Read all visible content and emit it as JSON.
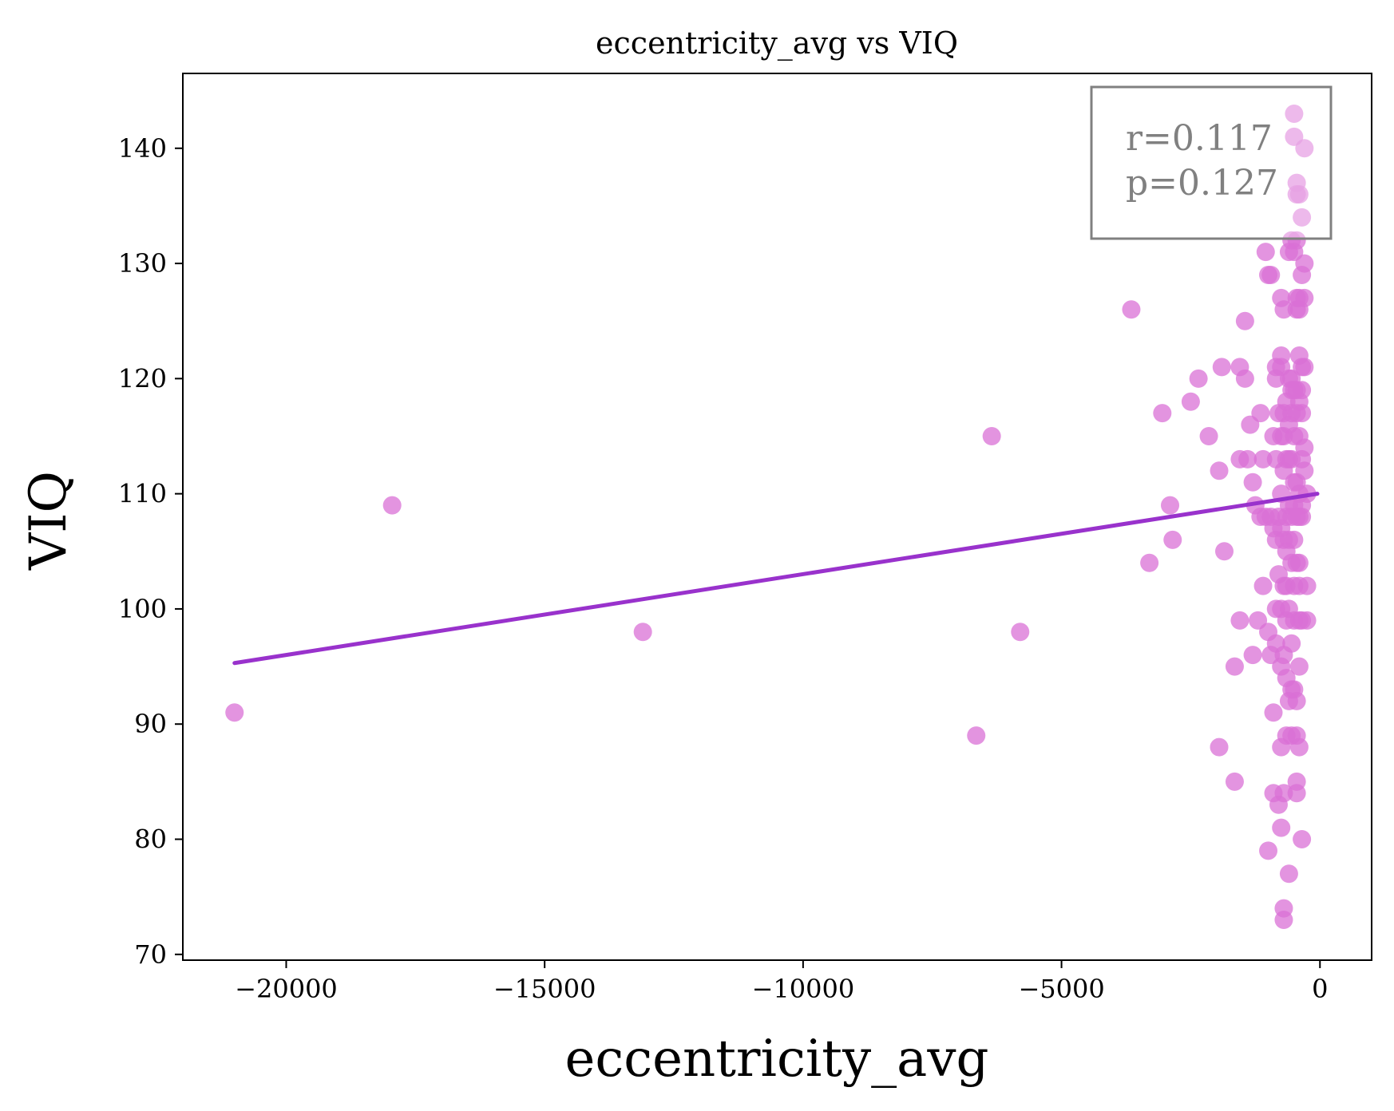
{
  "chart_data": {
    "type": "scatter",
    "title": "eccentricity_avg vs VIQ",
    "xlabel": "eccentricity_avg",
    "ylabel": "VIQ",
    "xlim": [
      -22000,
      1000
    ],
    "ylim": [
      69.5,
      146.5
    ],
    "xticks": [
      -20000,
      -15000,
      -10000,
      -5000,
      0
    ],
    "xtick_labels": [
      "−20000",
      "−15000",
      "−10000",
      "−5000",
      "0"
    ],
    "yticks": [
      70,
      80,
      90,
      100,
      110,
      120,
      130,
      140
    ],
    "ytick_labels": [
      "70",
      "80",
      "90",
      "100",
      "110",
      "120",
      "130",
      "140"
    ],
    "grid": false,
    "point_color": "#DA70D6",
    "line_color": "#9932CC",
    "annotation": {
      "lines": [
        "r=0.117",
        "p=0.127"
      ],
      "color": "#808080",
      "placement": "top-right"
    },
    "fit_line": {
      "x": [
        -21000,
        -50
      ],
      "y": [
        95.3,
        110
      ]
    },
    "series": [
      {
        "points": [
          [
            -21000,
            91
          ],
          [
            -17950,
            109
          ],
          [
            -13100,
            98
          ],
          [
            -6650,
            89
          ],
          [
            -6350,
            115
          ],
          [
            -5800,
            98
          ],
          [
            -3650,
            126
          ],
          [
            -3300,
            104
          ],
          [
            -3050,
            117
          ],
          [
            -2900,
            109
          ],
          [
            -2850,
            106
          ],
          [
            -2500,
            118
          ],
          [
            -2350,
            120
          ],
          [
            -2150,
            115
          ],
          [
            -1950,
            112
          ],
          [
            -1900,
            121
          ],
          [
            -1850,
            105
          ],
          [
            -1950,
            88
          ],
          [
            -1650,
            95
          ],
          [
            -1650,
            85
          ],
          [
            -1550,
            121
          ],
          [
            -1550,
            99
          ],
          [
            -1550,
            113
          ],
          [
            -1450,
            125
          ],
          [
            -1450,
            120
          ],
          [
            -1400,
            113
          ],
          [
            -1350,
            116
          ],
          [
            -1300,
            111
          ],
          [
            -1300,
            96
          ],
          [
            -1250,
            109
          ],
          [
            -1200,
            99
          ],
          [
            -1150,
            117
          ],
          [
            -1150,
            108
          ],
          [
            -1100,
            102
          ],
          [
            -1100,
            113
          ],
          [
            -1050,
            131
          ],
          [
            -1050,
            108
          ],
          [
            -1000,
            129
          ],
          [
            -1000,
            98
          ],
          [
            -1000,
            79
          ],
          [
            -950,
            108
          ],
          [
            -950,
            96
          ],
          [
            -950,
            129
          ],
          [
            -900,
            91
          ],
          [
            -900,
            84
          ],
          [
            -900,
            107
          ],
          [
            -900,
            115
          ],
          [
            -850,
            121
          ],
          [
            -850,
            120
          ],
          [
            -850,
            113
          ],
          [
            -850,
            106
          ],
          [
            -850,
            100
          ],
          [
            -850,
            97
          ],
          [
            -800,
            117
          ],
          [
            -800,
            108
          ],
          [
            -800,
            103
          ],
          [
            -800,
            83
          ],
          [
            -750,
            127
          ],
          [
            -750,
            122
          ],
          [
            -750,
            121
          ],
          [
            -750,
            115
          ],
          [
            -750,
            110
          ],
          [
            -750,
            107
          ],
          [
            -750,
            100
          ],
          [
            -750,
            95
          ],
          [
            -750,
            88
          ],
          [
            -750,
            81
          ],
          [
            -700,
            126
          ],
          [
            -700,
            117
          ],
          [
            -700,
            115
          ],
          [
            -700,
            112
          ],
          [
            -700,
            106
          ],
          [
            -700,
            102
          ],
          [
            -700,
            96
          ],
          [
            -700,
            84
          ],
          [
            -700,
            74
          ],
          [
            -700,
            73
          ],
          [
            -650,
            118
          ],
          [
            -650,
            113
          ],
          [
            -650,
            108
          ],
          [
            -650,
            105
          ],
          [
            -650,
            102
          ],
          [
            -650,
            99
          ],
          [
            -650,
            94
          ],
          [
            -650,
            89
          ],
          [
            -600,
            131
          ],
          [
            -600,
            120
          ],
          [
            -600,
            116
          ],
          [
            -600,
            113
          ],
          [
            -600,
            109
          ],
          [
            -600,
            106
          ],
          [
            -600,
            100
          ],
          [
            -600,
            92
          ],
          [
            -600,
            77
          ],
          [
            -550,
            132
          ],
          [
            -550,
            120
          ],
          [
            -550,
            119
          ],
          [
            -550,
            117
          ],
          [
            -550,
            113
          ],
          [
            -550,
            108
          ],
          [
            -550,
            104
          ],
          [
            -550,
            97
          ],
          [
            -550,
            93
          ],
          [
            -550,
            89
          ],
          [
            -500,
            143
          ],
          [
            -500,
            141
          ],
          [
            -500,
            131
          ],
          [
            -500,
            119
          ],
          [
            -500,
            115
          ],
          [
            -500,
            111
          ],
          [
            -500,
            109
          ],
          [
            -500,
            106
          ],
          [
            -500,
            102
          ],
          [
            -500,
            99
          ],
          [
            -500,
            93
          ],
          [
            -450,
            137
          ],
          [
            -450,
            136
          ],
          [
            -450,
            132
          ],
          [
            -450,
            127
          ],
          [
            -450,
            126
          ],
          [
            -450,
            119
          ],
          [
            -450,
            117
          ],
          [
            -450,
            111
          ],
          [
            -450,
            108
          ],
          [
            -450,
            104
          ],
          [
            -450,
            92
          ],
          [
            -450,
            89
          ],
          [
            -450,
            85
          ],
          [
            -450,
            84
          ],
          [
            -400,
            136
          ],
          [
            -400,
            127
          ],
          [
            -400,
            126
          ],
          [
            -400,
            122
          ],
          [
            -400,
            118
          ],
          [
            -400,
            115
          ],
          [
            -400,
            110
          ],
          [
            -400,
            108
          ],
          [
            -400,
            104
          ],
          [
            -400,
            102
          ],
          [
            -400,
            99
          ],
          [
            -400,
            95
          ],
          [
            -400,
            88
          ],
          [
            -350,
            134
          ],
          [
            -350,
            129
          ],
          [
            -350,
            121
          ],
          [
            -350,
            119
          ],
          [
            -350,
            117
          ],
          [
            -350,
            113
          ],
          [
            -350,
            109
          ],
          [
            -350,
            108
          ],
          [
            -350,
            99
          ],
          [
            -350,
            80
          ],
          [
            -300,
            140
          ],
          [
            -300,
            130
          ],
          [
            -300,
            127
          ],
          [
            -300,
            121
          ],
          [
            -300,
            114
          ],
          [
            -300,
            112
          ],
          [
            -250,
            110
          ],
          [
            -250,
            102
          ],
          [
            -250,
            99
          ]
        ]
      }
    ]
  }
}
